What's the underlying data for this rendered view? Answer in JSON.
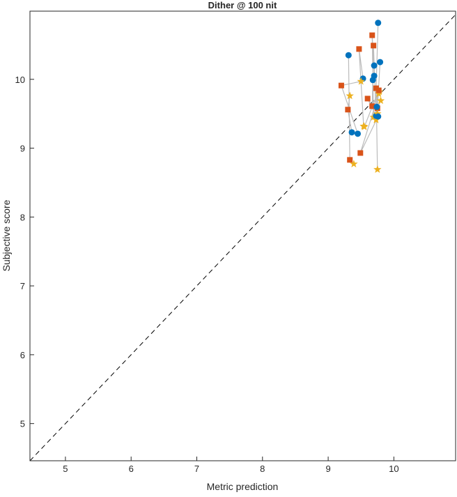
{
  "chart_data": {
    "type": "scatter",
    "title": "Dither @ 100 nit",
    "xlabel": "Metric prediction",
    "ylabel": "Subjective score",
    "xlim": [
      4.46,
      10.94
    ],
    "ylim": [
      4.46,
      10.99
    ],
    "xticks": [
      5,
      6,
      7,
      8,
      9,
      10
    ],
    "yticks": [
      5,
      6,
      7,
      8,
      9,
      10
    ],
    "diagonal": "y = x (dashed)",
    "colors": {
      "circle": "#0072BD",
      "square": "#D95319",
      "star": "#EDB120",
      "link": "#BBBBBB"
    },
    "groups": [
      {
        "circle": [
          9.76,
          10.82
        ],
        "square": [
          9.73,
          9.87
        ],
        "star": [
          9.75,
          8.69
        ]
      },
      {
        "circle": [
          9.31,
          10.35
        ],
        "square": [
          9.33,
          8.83
        ],
        "star": [
          9.39,
          8.77
        ]
      },
      {
        "circle": [
          9.53,
          10.01
        ],
        "square": [
          9.47,
          10.44
        ],
        "star": [
          9.54,
          9.32
        ]
      },
      {
        "circle": [
          9.7,
          10.05
        ],
        "square": [
          9.67,
          10.64
        ],
        "star": [
          9.69,
          9.45
        ]
      },
      {
        "circle": [
          9.7,
          10.2
        ],
        "square": [
          9.69,
          10.49
        ],
        "star": [
          9.73,
          9.41
        ]
      },
      {
        "circle": [
          9.79,
          10.25
        ],
        "square": [
          9.75,
          9.58
        ],
        "star": [
          9.8,
          9.69
        ]
      },
      {
        "circle": [
          9.68,
          9.99
        ],
        "square": [
          9.67,
          9.61
        ],
        "star": [
          9.77,
          9.79
        ]
      },
      {
        "circle": [
          9.45,
          9.21
        ],
        "square": [
          9.2,
          9.91
        ],
        "star": [
          9.5,
          9.97
        ]
      },
      {
        "circle": [
          9.36,
          9.23
        ],
        "square": [
          9.3,
          9.56
        ],
        "star": [
          9.33,
          9.76
        ]
      },
      {
        "circle": [
          9.73,
          9.47
        ],
        "square": [
          9.6,
          9.72
        ],
        "star": [
          9.75,
          9.5
        ]
      },
      {
        "circle": [
          9.76,
          9.46
        ],
        "square": [
          9.49,
          8.93
        ],
        "star": [
          9.78,
          9.82
        ]
      },
      {
        "circle": [
          9.74,
          9.6
        ],
        "square": [
          9.77,
          9.84
        ],
        "star": [
          9.55,
          9.31
        ]
      }
    ]
  }
}
